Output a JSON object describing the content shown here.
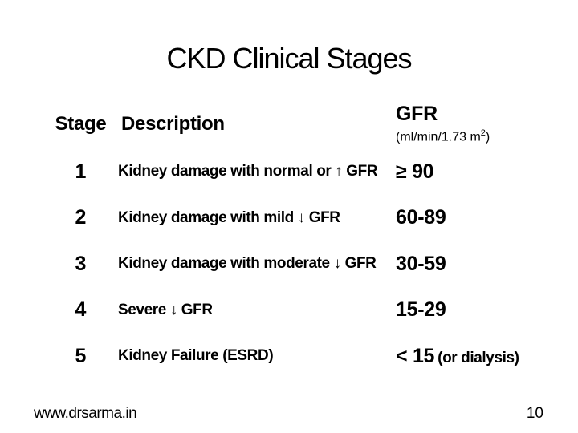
{
  "slide": {
    "title": "CKD Clinical Stages",
    "table": {
      "header": {
        "stage": "Stage",
        "description": "Description",
        "gfr": "GFR",
        "gfr_unit_pre": "(ml/min/1.73 m",
        "gfr_unit_sup": "2",
        "gfr_unit_post": ")"
      },
      "rows": [
        {
          "stage": "1",
          "description": "Kidney damage with normal or ↑ GFR",
          "gfr": "≥ 90",
          "gfr_note": ""
        },
        {
          "stage": "2",
          "description": "Kidney damage with mild ↓ GFR",
          "gfr": "60-89",
          "gfr_note": ""
        },
        {
          "stage": "3",
          "description": "Kidney damage with moderate ↓ GFR",
          "gfr": "30-59",
          "gfr_note": ""
        },
        {
          "stage": "4",
          "description": "Severe ↓ GFR",
          "gfr": "15-29",
          "gfr_note": ""
        },
        {
          "stage": "5",
          "description": "Kidney Failure (ESRD)",
          "gfr": "< 15",
          "gfr_note": "(or dialysis)"
        }
      ]
    },
    "footer": {
      "website": "www.drsarma.in",
      "page_number": "10"
    },
    "colors": {
      "background": "#ffffff",
      "text": "#000000"
    }
  }
}
